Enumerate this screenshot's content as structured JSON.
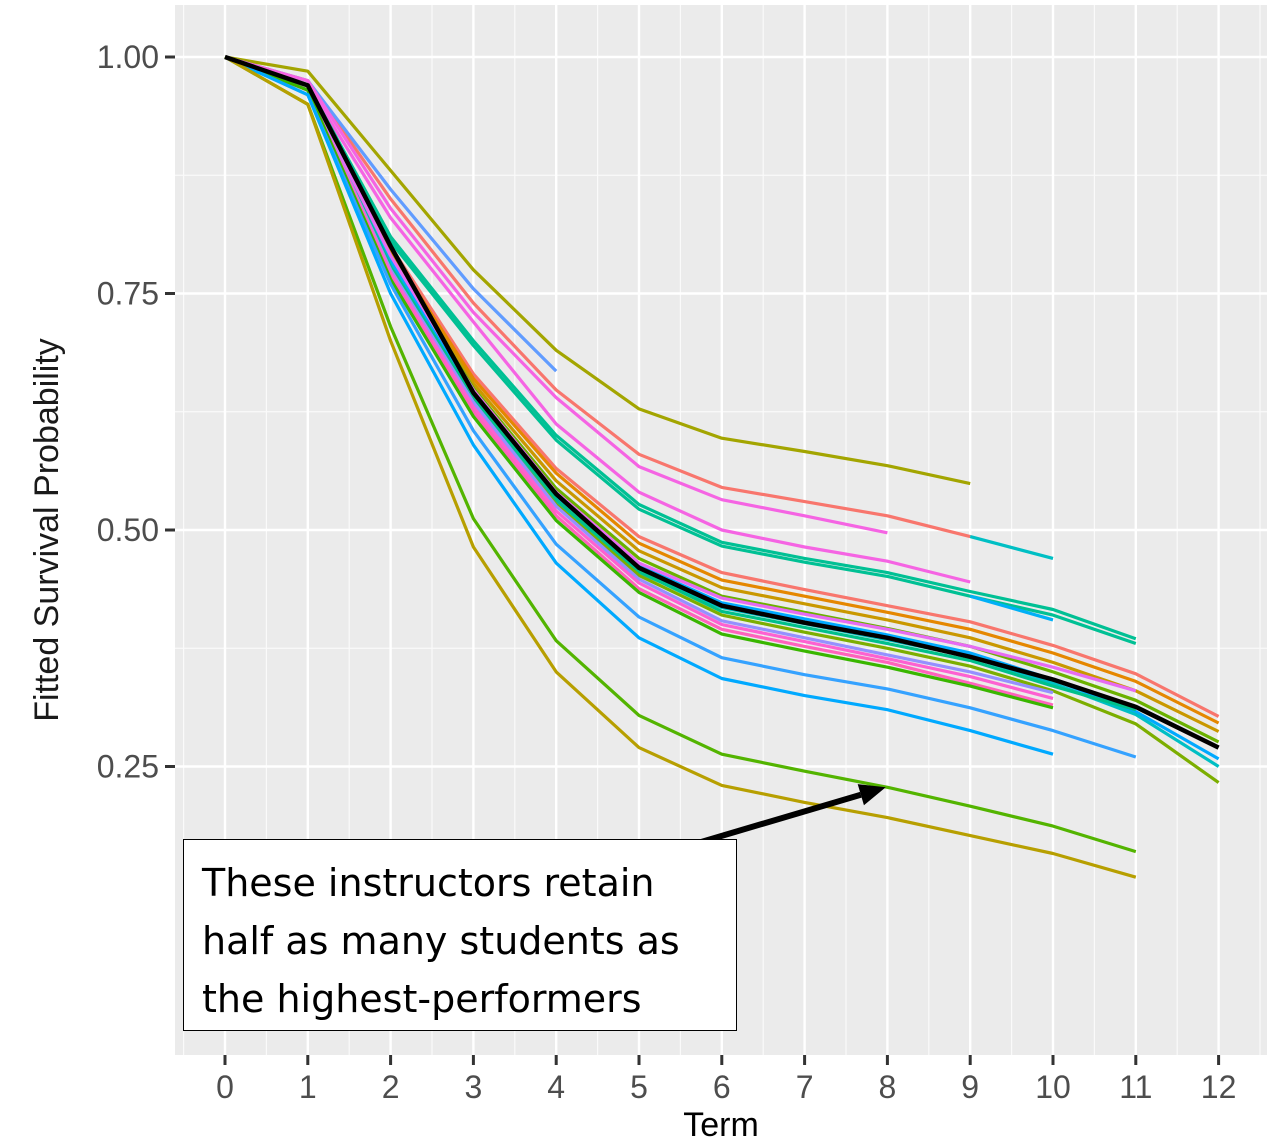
{
  "chart_data": {
    "type": "line",
    "xlabel": "Term",
    "ylabel": "Fitted Survival Probability",
    "xlim": [
      -0.6,
      12.6
    ],
    "ylim": [
      0.04,
      1.05
    ],
    "x_ticks": [
      0,
      1,
      2,
      3,
      4,
      5,
      6,
      7,
      8,
      9,
      10,
      11,
      12
    ],
    "y_ticks": [
      0.25,
      0.5,
      0.75,
      1.0
    ],
    "y_tick_labels": [
      "0.25",
      "0.50",
      "0.75",
      "1.00"
    ],
    "grid": true,
    "background": "#ebebeb",
    "highlight_color": "#000000",
    "series": [
      {
        "color": "#a3a500",
        "x": [
          0,
          1,
          2,
          3,
          4,
          5,
          6,
          7,
          8,
          9
        ],
        "y": [
          1.0,
          0.985,
          0.88,
          0.775,
          0.69,
          0.628,
          0.597,
          0.583,
          0.568,
          0.549
        ]
      },
      {
        "color": "#f8766d",
        "x": [
          0,
          1,
          2,
          3,
          4,
          5,
          6,
          7,
          8,
          9
        ],
        "y": [
          1.0,
          0.975,
          0.85,
          0.74,
          0.648,
          0.58,
          0.545,
          0.53,
          0.515,
          0.493
        ]
      },
      {
        "color": "#00bfc4",
        "x": [
          9,
          10
        ],
        "y": [
          0.493,
          0.47
        ]
      },
      {
        "color": "#619cff",
        "x": [
          0,
          1,
          2,
          3,
          4
        ],
        "y": [
          1.0,
          0.975,
          0.86,
          0.755,
          0.668
        ]
      },
      {
        "color": "#f564e3",
        "x": [
          0,
          1,
          2,
          3,
          4,
          5,
          6,
          7,
          8
        ],
        "y": [
          1.0,
          0.975,
          0.84,
          0.73,
          0.64,
          0.567,
          0.532,
          0.515,
          0.497
        ]
      },
      {
        "color": "#f564e3",
        "x": [
          0,
          1,
          2,
          3,
          4,
          5,
          6,
          7,
          8,
          9
        ],
        "y": [
          1.0,
          0.97,
          0.83,
          0.72,
          0.612,
          0.54,
          0.5,
          0.482,
          0.467,
          0.445
        ]
      },
      {
        "color": "#00c094",
        "x": [
          0,
          1,
          2,
          3,
          4,
          5,
          6,
          7,
          8,
          9,
          10,
          11
        ],
        "y": [
          1.0,
          0.97,
          0.81,
          0.7,
          0.6,
          0.527,
          0.487,
          0.47,
          0.455,
          0.435,
          0.416,
          0.385
        ]
      },
      {
        "color": "#00c094",
        "x": [
          0,
          1,
          2,
          3,
          4,
          5,
          6,
          7,
          8,
          9,
          10,
          11
        ],
        "y": [
          1.0,
          0.97,
          0.805,
          0.695,
          0.595,
          0.522,
          0.483,
          0.466,
          0.451,
          0.43,
          0.41,
          0.38
        ]
      },
      {
        "color": "#00b0f6",
        "x": [
          9,
          10
        ],
        "y": [
          0.43,
          0.405
        ]
      },
      {
        "color": "#f8766d",
        "x": [
          0,
          1,
          2,
          3,
          4,
          5,
          6,
          7,
          8,
          9,
          10,
          11,
          12
        ],
        "y": [
          1.0,
          0.97,
          0.8,
          0.665,
          0.565,
          0.493,
          0.455,
          0.437,
          0.42,
          0.403,
          0.378,
          0.348,
          0.303
        ]
      },
      {
        "color": "#e58700",
        "x": [
          0,
          1,
          2,
          3,
          4,
          5,
          6,
          7,
          8,
          9,
          10,
          11,
          12
        ],
        "y": [
          1.0,
          0.97,
          0.795,
          0.66,
          0.56,
          0.486,
          0.447,
          0.43,
          0.413,
          0.395,
          0.37,
          0.34,
          0.296
        ]
      },
      {
        "color": "#c99800",
        "x": [
          0,
          1,
          2,
          3,
          4,
          5,
          6,
          7,
          8,
          9,
          10,
          11,
          12
        ],
        "y": [
          1.0,
          0.97,
          0.79,
          0.655,
          0.552,
          0.478,
          0.439,
          0.422,
          0.405,
          0.386,
          0.36,
          0.33,
          0.287
        ]
      },
      {
        "color": "#6bb100",
        "x": [
          0,
          1,
          2,
          3,
          4,
          5,
          6,
          7,
          8,
          9,
          10,
          11,
          12
        ],
        "y": [
          1.0,
          0.965,
          0.79,
          0.65,
          0.544,
          0.47,
          0.43,
          0.413,
          0.396,
          0.377,
          0.35,
          0.32,
          0.276
        ]
      },
      {
        "color": "#00a9ff",
        "x": [
          0,
          1,
          2,
          3,
          4,
          5,
          6,
          7,
          8,
          9,
          10,
          11,
          12
        ],
        "y": [
          1.0,
          0.965,
          0.785,
          0.643,
          0.536,
          0.462,
          0.423,
          0.406,
          0.389,
          0.37,
          0.342,
          0.308,
          0.258
        ]
      },
      {
        "color": "#00bfc4",
        "x": [
          0,
          1,
          2,
          3,
          4,
          5,
          6,
          7,
          8,
          9,
          10,
          11,
          12
        ],
        "y": [
          1.0,
          0.965,
          0.78,
          0.638,
          0.53,
          0.455,
          0.418,
          0.401,
          0.384,
          0.366,
          0.338,
          0.305,
          0.25
        ]
      },
      {
        "color": "#00c08b",
        "x": [
          0,
          1,
          2,
          3,
          4,
          5,
          6,
          7,
          8,
          9,
          10,
          11
        ],
        "y": [
          1.0,
          0.965,
          0.778,
          0.64,
          0.532,
          0.456,
          0.414,
          0.397,
          0.38,
          0.362,
          0.335,
          0.31
        ]
      },
      {
        "color": "#7cae00",
        "x": [
          0,
          1,
          2,
          3,
          4,
          5,
          6,
          7,
          8,
          9,
          10,
          11,
          12
        ],
        "y": [
          1.0,
          0.965,
          0.775,
          0.633,
          0.527,
          0.452,
          0.41,
          0.392,
          0.375,
          0.356,
          0.33,
          0.295,
          0.233
        ]
      },
      {
        "color": "#e76bf3",
        "x": [
          0,
          1,
          2,
          3,
          4,
          5,
          6,
          7,
          8,
          9,
          10,
          11
        ],
        "y": [
          1.0,
          0.965,
          0.79,
          0.648,
          0.54,
          0.465,
          0.428,
          0.411,
          0.395,
          0.377,
          0.355,
          0.33
        ]
      },
      {
        "color": "#9590ff",
        "x": [
          0,
          1,
          2,
          3,
          4,
          5,
          6,
          7,
          8,
          9,
          10
        ],
        "y": [
          1.0,
          0.965,
          0.775,
          0.635,
          0.525,
          0.448,
          0.404,
          0.386,
          0.368,
          0.35,
          0.328
        ]
      },
      {
        "color": "#fd61d1",
        "x": [
          0,
          1,
          2,
          3,
          4,
          5,
          6,
          7,
          8,
          9,
          10
        ],
        "y": [
          1.0,
          0.965,
          0.772,
          0.63,
          0.52,
          0.444,
          0.4,
          0.382,
          0.364,
          0.345,
          0.322
        ]
      },
      {
        "color": "#ff62bc",
        "x": [
          0,
          1,
          2,
          3,
          4,
          5,
          6,
          7,
          8,
          9,
          10
        ],
        "y": [
          1.0,
          0.965,
          0.768,
          0.625,
          0.515,
          0.438,
          0.395,
          0.377,
          0.36,
          0.338,
          0.315
        ]
      },
      {
        "color": "#39b600",
        "x": [
          0,
          1,
          2,
          3,
          4,
          5,
          6,
          7,
          8,
          9,
          10
        ],
        "y": [
          1.0,
          0.965,
          0.765,
          0.62,
          0.51,
          0.434,
          0.39,
          0.372,
          0.355,
          0.335,
          0.312
        ]
      },
      {
        "color": "#35a2ff",
        "x": [
          0,
          1,
          2,
          3,
          4,
          5,
          6,
          7,
          8,
          9,
          10,
          11
        ],
        "y": [
          1.0,
          0.96,
          0.76,
          0.605,
          0.485,
          0.408,
          0.365,
          0.347,
          0.332,
          0.312,
          0.288,
          0.26
        ]
      },
      {
        "color": "#00a9ff",
        "x": [
          0,
          1,
          2,
          3,
          4,
          5,
          6,
          7,
          8,
          9,
          10
        ],
        "y": [
          1.0,
          0.96,
          0.75,
          0.59,
          0.465,
          0.386,
          0.343,
          0.325,
          0.31,
          0.288,
          0.263
        ]
      },
      {
        "color": "#53b400",
        "x": [
          0,
          1,
          2,
          3,
          4,
          5,
          6,
          7,
          8,
          9,
          10,
          11
        ],
        "y": [
          1.0,
          0.95,
          0.715,
          0.512,
          0.383,
          0.304,
          0.263,
          0.245,
          0.228,
          0.208,
          0.187,
          0.16
        ]
      },
      {
        "color": "#b79f00",
        "x": [
          0,
          1,
          2,
          3,
          4,
          5,
          6,
          7,
          8,
          9,
          10,
          11
        ],
        "y": [
          1.0,
          0.95,
          0.7,
          0.482,
          0.35,
          0.27,
          0.23,
          0.212,
          0.196,
          0.177,
          0.158,
          0.133
        ]
      },
      {
        "color": "#000000",
        "highlight": true,
        "x": [
          0,
          1,
          2,
          3,
          4,
          5,
          6,
          7,
          8,
          9,
          10,
          11,
          12
        ],
        "y": [
          1.0,
          0.97,
          0.8,
          0.645,
          0.538,
          0.46,
          0.42,
          0.402,
          0.386,
          0.366,
          0.342,
          0.313,
          0.27
        ]
      }
    ],
    "annotation": {
      "text": "These instructors retain\nhalf as many students as\nthe highest-performers",
      "arrow_from": [
        4.2,
        0.13
      ],
      "arrow_to": [
        7.98,
        0.228
      ]
    }
  }
}
